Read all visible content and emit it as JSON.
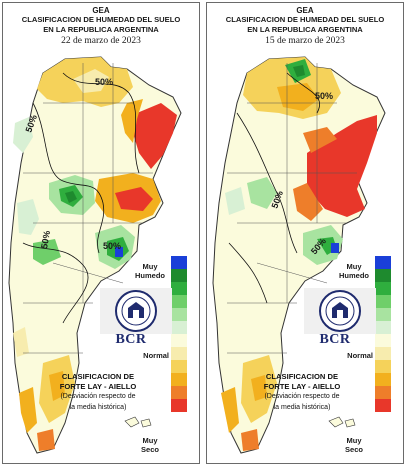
{
  "legend": {
    "muy_humedo": "Muy\nHumedo",
    "normal": "Normal",
    "muy_seco": "Muy\nSeco",
    "scale_colors": [
      "#1a3fd8",
      "#1e8a2e",
      "#2fae3e",
      "#6fcf6a",
      "#a8e3a0",
      "#d8f0d4",
      "#fbfbdc",
      "#f7ecae",
      "#f5d25a",
      "#f2b01e",
      "#ee7e2a",
      "#e8372a"
    ]
  },
  "panels": [
    {
      "org": "GEA",
      "title_line1": "CLASIFICACION DE HUMEDAD DEL SUELO",
      "title_line2": "EN LA REPUBLICA ARGENTINA",
      "date": "22 de marzo de 2023",
      "bcr": "BCR",
      "method_line1": "CLASIFICACION DE",
      "method_line2": "FORTE LAY - AIELLO",
      "note_line1": "(Desviación respecto de",
      "note_line2": "la media histórica)",
      "iso_labels": [
        "50%",
        "50%",
        "50%",
        "50%"
      ]
    },
    {
      "org": "GEA",
      "title_line1": "CLASIFICACION DE HUMEDAD DEL SUELO",
      "title_line2": "EN LA REPUBLICA ARGENTINA",
      "date": "15 de marzo de 2023",
      "bcr": "BCR",
      "method_line1": "CLASIFICACION DE",
      "method_line2": "FORTE LAY - AIELLO",
      "note_line1": "(Desviación respecto de",
      "note_line2": "la media histórica)",
      "iso_labels": [
        "50%",
        "50%",
        "50%"
      ]
    }
  ]
}
